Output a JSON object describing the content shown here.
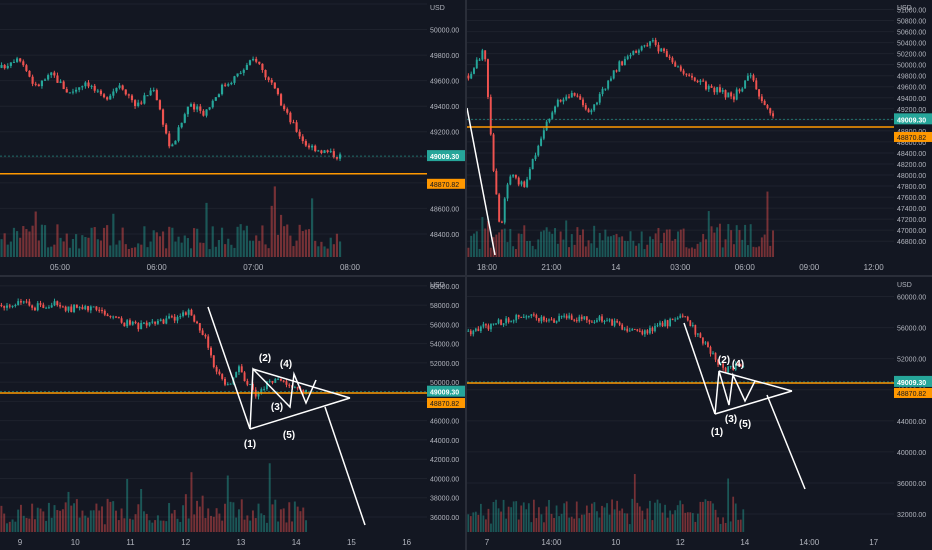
{
  "colors": {
    "background": "#131722",
    "up": "#26a69a",
    "down": "#ef5350",
    "level_line": "#ff9800",
    "last_price_badge": "#26a69a",
    "pattern_lines": "#ffffff",
    "axis_text": "#b2b5be",
    "grid": "#1e222d"
  },
  "price_labels": {
    "last": "49009.30",
    "level": "48870.82"
  },
  "pattern_labels": [
    "(1)",
    "(2)",
    "(3)",
    "(4)",
    "(5)"
  ],
  "chart_data": [
    {
      "type": "line",
      "panel": "top-left",
      "price_axis": [
        "50200.00",
        "50000.00",
        "49800.00",
        "49600.00",
        "49400.00",
        "49200.00",
        "49000.00",
        "48800.00",
        "48600.00",
        "48400.00"
      ],
      "time_axis": [
        "05:00",
        "06:00",
        "07:00",
        "08:00",
        "09:00"
      ],
      "x": [
        0,
        0.05,
        0.1,
        0.15,
        0.2,
        0.25,
        0.3,
        0.35,
        0.4,
        0.45,
        0.5,
        0.55,
        0.6,
        0.65,
        0.7,
        0.75,
        0.8,
        0.85,
        0.9,
        0.95,
        1.0
      ],
      "close": [
        49700,
        49800,
        49550,
        49650,
        49500,
        49600,
        49450,
        49580,
        49400,
        49550,
        49050,
        49400,
        49350,
        49550,
        49650,
        49780,
        49550,
        49300,
        49100,
        49050,
        49009.3
      ],
      "level": 48870.82,
      "ylim": [
        48300,
        50200
      ]
    },
    {
      "type": "line",
      "panel": "top-right",
      "price_axis": [
        "51000.00",
        "50800.00",
        "50600.00",
        "50400.00",
        "50200.00",
        "50000.00",
        "49800.00",
        "49600.00",
        "49400.00",
        "49200.00",
        "49000.00",
        "48800.00",
        "48600.00",
        "48400.00",
        "48200.00",
        "48000.00",
        "47800.00",
        "47600.00",
        "47400.00",
        "47200.00",
        "47000.00",
        "46800.00"
      ],
      "time_axis": [
        "18:00",
        "21:00",
        "14",
        "03:00",
        "06:00",
        "09:00",
        "12:00"
      ],
      "x": [
        0,
        0.04,
        0.06,
        0.08,
        0.1,
        0.14,
        0.18,
        0.22,
        0.26,
        0.3,
        0.36,
        0.4,
        0.46,
        0.5,
        0.56,
        0.6,
        0.66,
        0.7,
        0.74,
        0.76
      ],
      "close": [
        49800,
        50300,
        48300,
        47000,
        48000,
        47800,
        48700,
        49300,
        49500,
        49100,
        49850,
        50200,
        50400,
        50100,
        49700,
        49600,
        49400,
        49800,
        49300,
        49100
      ],
      "level": 48870.82,
      "ylim": [
        46700,
        51100
      ]
    },
    {
      "type": "line",
      "panel": "bottom-left",
      "price_axis": [
        "60000.00",
        "58000.00",
        "56000.00",
        "54000.00",
        "52000.00",
        "50000.00",
        "48000.00",
        "46000.00",
        "44000.00",
        "42000.00",
        "40000.00",
        "38000.00",
        "36000.00"
      ],
      "time_axis": [
        "9",
        "10",
        "11",
        "12",
        "13",
        "14",
        "15",
        "16"
      ],
      "x": [
        0,
        0.04,
        0.08,
        0.12,
        0.16,
        0.2,
        0.24,
        0.28,
        0.32,
        0.36,
        0.4,
        0.44,
        0.48,
        0.5,
        0.53,
        0.56,
        0.6,
        0.64,
        0.68,
        0.72
      ],
      "close": [
        58000,
        58300,
        57800,
        58200,
        57600,
        57900,
        57000,
        56300,
        55800,
        56200,
        56600,
        57300,
        54800,
        52000,
        49300,
        51500,
        48600,
        50300,
        49600,
        49009.3
      ],
      "level": 48870.82,
      "ylim": [
        35500,
        60500
      ]
    },
    {
      "type": "line",
      "panel": "bottom-right",
      "price_axis": [
        "60000.00",
        "56000.00",
        "52000.00",
        "48000.00",
        "44000.00",
        "40000.00",
        "36000.00",
        "32000.00"
      ],
      "time_axis": [
        "7",
        "14:00",
        "10",
        "12",
        "14",
        "14:00",
        "17"
      ],
      "x": [
        0,
        0.05,
        0.1,
        0.15,
        0.2,
        0.25,
        0.3,
        0.35,
        0.4,
        0.45,
        0.5,
        0.55,
        0.6,
        0.65,
        0.7
      ],
      "close": [
        55500,
        56200,
        57000,
        57500,
        56800,
        57400,
        57200,
        57000,
        56000,
        55500,
        56500,
        57400,
        54000,
        50500,
        51300
      ],
      "level": 48870.82,
      "ylim": [
        31000,
        62000
      ]
    }
  ]
}
